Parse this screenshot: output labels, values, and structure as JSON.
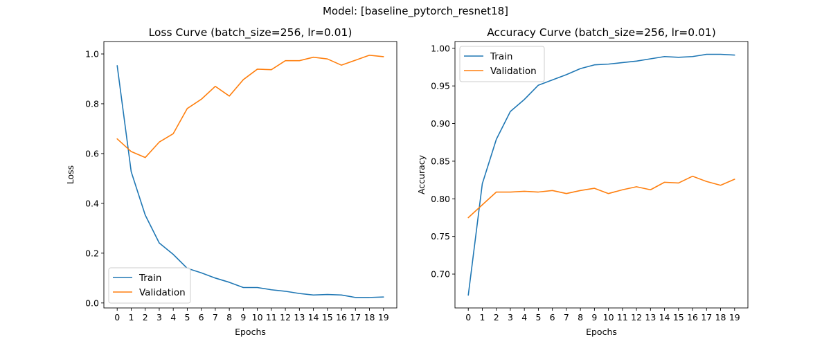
{
  "figure": {
    "suptitle": "Model: [baseline_pytorch_resnet18]"
  },
  "chart_data": [
    {
      "type": "line",
      "title": "Loss Curve (batch_size=256, lr=0.01)",
      "xlabel": "Epochs",
      "ylabel": "Loss",
      "x": [
        0,
        1,
        2,
        3,
        4,
        5,
        6,
        7,
        8,
        9,
        10,
        11,
        12,
        13,
        14,
        15,
        16,
        17,
        18,
        19
      ],
      "xlim": [
        -0.95,
        19.95
      ],
      "ylim": [
        -0.02,
        1.05
      ],
      "yticks": [
        0.0,
        0.2,
        0.4,
        0.6,
        0.8,
        1.0
      ],
      "ytick_decimals": 1,
      "legend_position": "lower-left",
      "grid": false,
      "series": [
        {
          "name": "Train",
          "color": "#1f77b4",
          "values": [
            0.953,
            0.527,
            0.353,
            0.241,
            0.195,
            0.139,
            0.121,
            0.1,
            0.083,
            0.062,
            0.062,
            0.053,
            0.047,
            0.038,
            0.032,
            0.034,
            0.032,
            0.022,
            0.022,
            0.024
          ]
        },
        {
          "name": "Validation",
          "color": "#ff7f0e",
          "values": [
            0.659,
            0.608,
            0.584,
            0.646,
            0.68,
            0.781,
            0.818,
            0.87,
            0.831,
            0.897,
            0.939,
            0.937,
            0.973,
            0.973,
            0.987,
            0.98,
            0.955,
            0.975,
            0.995,
            0.989
          ]
        }
      ]
    },
    {
      "type": "line",
      "title": "Accuracy Curve (batch_size=256, lr=0.01)",
      "xlabel": "Epochs",
      "ylabel": "Accuracy",
      "x": [
        0,
        1,
        2,
        3,
        4,
        5,
        6,
        7,
        8,
        9,
        10,
        11,
        12,
        13,
        14,
        15,
        16,
        17,
        18,
        19
      ],
      "xlim": [
        -0.95,
        19.95
      ],
      "ylim": [
        0.655,
        1.009
      ],
      "yticks": [
        0.7,
        0.75,
        0.8,
        0.85,
        0.9,
        0.95,
        1.0
      ],
      "ytick_decimals": 2,
      "legend_position": "upper-left",
      "grid": false,
      "series": [
        {
          "name": "Train",
          "color": "#1f77b4",
          "values": [
            0.672,
            0.82,
            0.879,
            0.916,
            0.932,
            0.951,
            0.958,
            0.965,
            0.973,
            0.978,
            0.979,
            0.981,
            0.983,
            0.986,
            0.989,
            0.988,
            0.989,
            0.992,
            0.992,
            0.991
          ]
        },
        {
          "name": "Validation",
          "color": "#ff7f0e",
          "values": [
            0.775,
            0.792,
            0.809,
            0.809,
            0.81,
            0.809,
            0.811,
            0.807,
            0.811,
            0.814,
            0.807,
            0.812,
            0.816,
            0.812,
            0.822,
            0.821,
            0.83,
            0.823,
            0.818,
            0.826
          ]
        }
      ]
    }
  ]
}
